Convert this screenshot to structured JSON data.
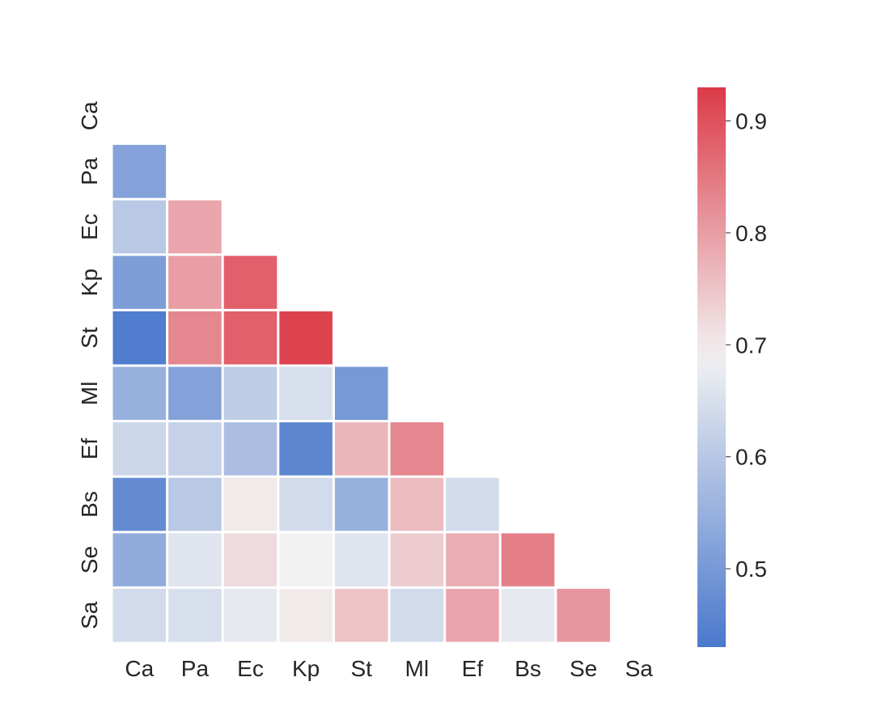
{
  "chart_data": {
    "type": "heatmap",
    "mask": "upper-triangle-including-diagonal",
    "x_labels": [
      "Ca",
      "Pa",
      "Ec",
      "Kp",
      "St",
      "Ml",
      "Ef",
      "Bs",
      "Se",
      "Sa"
    ],
    "y_labels": [
      "Ca",
      "Pa",
      "Ec",
      "Kp",
      "St",
      "Ml",
      "Ef",
      "Bs",
      "Se",
      "Sa"
    ],
    "values": [
      [
        null,
        null,
        null,
        null,
        null,
        null,
        null,
        null,
        null,
        null
      ],
      [
        0.52,
        null,
        null,
        null,
        null,
        null,
        null,
        null,
        null,
        null
      ],
      [
        0.6,
        0.79,
        null,
        null,
        null,
        null,
        null,
        null,
        null,
        null
      ],
      [
        0.51,
        0.8,
        0.88,
        null,
        null,
        null,
        null,
        null,
        null,
        null
      ],
      [
        0.44,
        0.83,
        0.88,
        0.92,
        null,
        null,
        null,
        null,
        null,
        null
      ],
      [
        0.55,
        0.52,
        0.61,
        0.65,
        0.5,
        null,
        null,
        null,
        null,
        null
      ],
      [
        0.63,
        0.62,
        0.58,
        0.46,
        0.77,
        0.83,
        null,
        null,
        null,
        null
      ],
      [
        0.47,
        0.6,
        0.7,
        0.64,
        0.55,
        0.76,
        0.64,
        null,
        null,
        null
      ],
      [
        0.54,
        0.66,
        0.72,
        0.69,
        0.66,
        0.74,
        0.78,
        0.84,
        null,
        null
      ],
      [
        0.64,
        0.65,
        0.67,
        0.7,
        0.75,
        0.64,
        0.79,
        0.67,
        0.81,
        null
      ]
    ],
    "colorbar": {
      "vmin": 0.43,
      "vmax": 0.93,
      "ticks": [
        0.5,
        0.6,
        0.7,
        0.8,
        0.9
      ],
      "tick_labels": [
        "0.5",
        "0.6",
        "0.7",
        "0.8",
        "0.9"
      ]
    },
    "colormap": {
      "low": "#4a78cc",
      "mid": "#f2f2f2",
      "high": "#dc3a48",
      "center": 0.69
    },
    "title": "",
    "xlabel": "",
    "ylabel": "",
    "grid": false
  }
}
